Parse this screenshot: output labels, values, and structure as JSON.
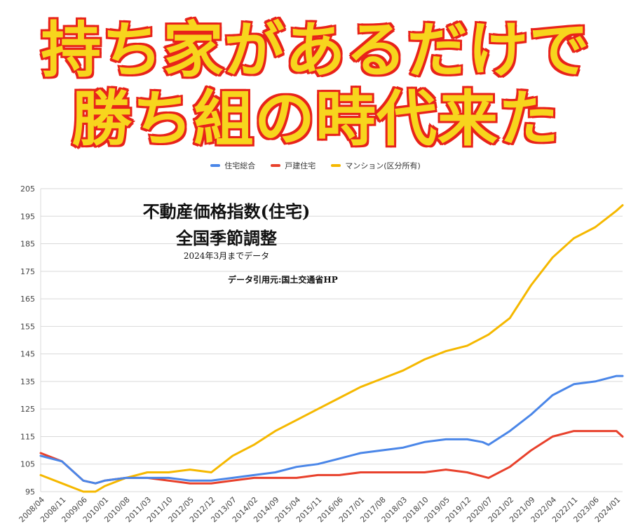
{
  "headline": {
    "line1": "持ち家があるだけで",
    "line2": "勝ち組の時代来た"
  },
  "colors": {
    "headline_fill": "#f7d51d",
    "headline_stroke": "#e8231b"
  },
  "annotation": {
    "title_line1": "不動産価格指数(住宅)",
    "title_line2": "全国季節調整",
    "subtitle": "2024年3月までデータ",
    "source": "データ引用元:国土交通省HP"
  },
  "chart_data": {
    "type": "line",
    "title": "",
    "xlabel": "",
    "ylabel": "",
    "ylim": [
      95,
      205
    ],
    "yticks": [
      95,
      105,
      115,
      125,
      135,
      145,
      155,
      165,
      175,
      185,
      195,
      205
    ],
    "grid": true,
    "legend": "top-center",
    "x_tick_labels": [
      "2008/04",
      "2008/11",
      "2009/06",
      "2010/01",
      "2010/08",
      "2011/03",
      "2011/10",
      "2012/05",
      "2012/12",
      "2013/07",
      "2014/02",
      "2014/09",
      "2015/04",
      "2015/11",
      "2016/06",
      "2017/01",
      "2017/08",
      "2018/03",
      "2018/10",
      "2019/05",
      "2019/12",
      "2020/07",
      "2021/02",
      "2021/09",
      "2022/04",
      "2022/11",
      "2023/06",
      "2024/01"
    ],
    "x_range": [
      "2008/04",
      "2024/03"
    ],
    "series": [
      {
        "name": "住宅総合",
        "color": "#4a86e8",
        "points": [
          [
            "2008/04",
            108
          ],
          [
            "2008/11",
            106
          ],
          [
            "2009/06",
            99
          ],
          [
            "2009/10",
            98
          ],
          [
            "2010/01",
            99
          ],
          [
            "2010/08",
            100
          ],
          [
            "2011/03",
            100
          ],
          [
            "2011/10",
            100
          ],
          [
            "2012/05",
            99
          ],
          [
            "2012/12",
            99
          ],
          [
            "2013/07",
            100
          ],
          [
            "2014/02",
            101
          ],
          [
            "2014/09",
            102
          ],
          [
            "2015/04",
            104
          ],
          [
            "2015/11",
            105
          ],
          [
            "2016/06",
            107
          ],
          [
            "2017/01",
            109
          ],
          [
            "2017/08",
            110
          ],
          [
            "2018/03",
            111
          ],
          [
            "2018/10",
            113
          ],
          [
            "2019/05",
            114
          ],
          [
            "2019/12",
            114
          ],
          [
            "2020/05",
            113
          ],
          [
            "2020/07",
            112
          ],
          [
            "2021/02",
            117
          ],
          [
            "2021/09",
            123
          ],
          [
            "2022/04",
            130
          ],
          [
            "2022/11",
            134
          ],
          [
            "2023/06",
            135
          ],
          [
            "2024/01",
            137
          ],
          [
            "2024/03",
            137
          ]
        ]
      },
      {
        "name": "戸建住宅",
        "color": "#e8412c",
        "points": [
          [
            "2008/04",
            109
          ],
          [
            "2008/11",
            106
          ],
          [
            "2009/06",
            99
          ],
          [
            "2009/10",
            98
          ],
          [
            "2010/01",
            99
          ],
          [
            "2010/08",
            100
          ],
          [
            "2011/03",
            100
          ],
          [
            "2011/10",
            99
          ],
          [
            "2012/05",
            98
          ],
          [
            "2012/12",
            98
          ],
          [
            "2013/07",
            99
          ],
          [
            "2014/02",
            100
          ],
          [
            "2014/09",
            100
          ],
          [
            "2015/04",
            100
          ],
          [
            "2015/11",
            101
          ],
          [
            "2016/06",
            101
          ],
          [
            "2017/01",
            102
          ],
          [
            "2017/08",
            102
          ],
          [
            "2018/03",
            102
          ],
          [
            "2018/10",
            102
          ],
          [
            "2019/05",
            103
          ],
          [
            "2019/12",
            102
          ],
          [
            "2020/07",
            100
          ],
          [
            "2021/02",
            104
          ],
          [
            "2021/09",
            110
          ],
          [
            "2022/04",
            115
          ],
          [
            "2022/11",
            117
          ],
          [
            "2023/06",
            117
          ],
          [
            "2024/01",
            117
          ],
          [
            "2024/03",
            115
          ]
        ]
      },
      {
        "name": "マンション(区分所有)",
        "color": "#f5b800",
        "points": [
          [
            "2008/04",
            101
          ],
          [
            "2008/11",
            98
          ],
          [
            "2009/06",
            95
          ],
          [
            "2009/10",
            95
          ],
          [
            "2010/01",
            97
          ],
          [
            "2010/08",
            100
          ],
          [
            "2011/03",
            102
          ],
          [
            "2011/10",
            102
          ],
          [
            "2012/05",
            103
          ],
          [
            "2012/12",
            102
          ],
          [
            "2013/07",
            108
          ],
          [
            "2014/02",
            112
          ],
          [
            "2014/09",
            117
          ],
          [
            "2015/04",
            121
          ],
          [
            "2015/11",
            125
          ],
          [
            "2016/06",
            129
          ],
          [
            "2017/01",
            133
          ],
          [
            "2017/08",
            136
          ],
          [
            "2018/03",
            139
          ],
          [
            "2018/10",
            143
          ],
          [
            "2019/05",
            146
          ],
          [
            "2019/12",
            148
          ],
          [
            "2020/07",
            152
          ],
          [
            "2021/02",
            158
          ],
          [
            "2021/09",
            170
          ],
          [
            "2022/04",
            180
          ],
          [
            "2022/11",
            187
          ],
          [
            "2023/06",
            191
          ],
          [
            "2024/01",
            197
          ],
          [
            "2024/03",
            199
          ]
        ]
      }
    ]
  }
}
